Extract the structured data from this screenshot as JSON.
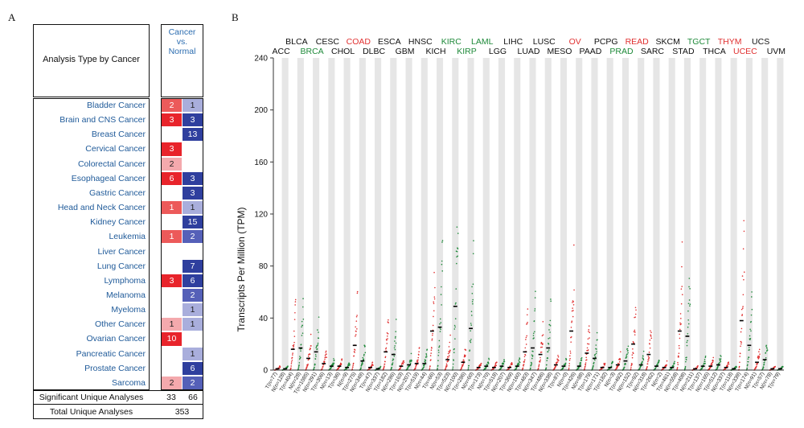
{
  "panels": {
    "a_label": "A",
    "b_label": "B"
  },
  "table": {
    "header_label": "Analysis Type by Cancer",
    "column_header_lines": [
      "Cancer",
      "vs.",
      "Normal"
    ],
    "colors": {
      "red_dark": "#e8242b",
      "red_mid": "#ec5a5a",
      "red_light": "#f4a9ad",
      "blue_dark": "#2f3f9e",
      "blue_mid": "#5560b8",
      "blue_light": "#a9aedc",
      "label_blue": "#1f5a99"
    },
    "rows": [
      {
        "name": "Bladder Cancer",
        "up": "2",
        "down": "1"
      },
      {
        "name": "Brain and CNS Cancer",
        "up": "3",
        "down": "3"
      },
      {
        "name": "Breast Cancer",
        "up": "",
        "down": "13"
      },
      {
        "name": "Cervical Cancer",
        "up": "3",
        "down": ""
      },
      {
        "name": "Colorectal Cancer",
        "up": "2",
        "down": ""
      },
      {
        "name": "Esophageal Cancer",
        "up": "6",
        "down": "3"
      },
      {
        "name": "Gastric Cancer",
        "up": "",
        "down": "3"
      },
      {
        "name": "Head and Neck Cancer",
        "up": "1",
        "down": "1"
      },
      {
        "name": "Kidney Cancer",
        "up": "",
        "down": "15"
      },
      {
        "name": "Leukemia",
        "up": "1",
        "down": "2"
      },
      {
        "name": "Liver Cancer",
        "up": "",
        "down": ""
      },
      {
        "name": "Lung Cancer",
        "up": "",
        "down": "7"
      },
      {
        "name": "Lymphoma",
        "up": "3",
        "down": "6"
      },
      {
        "name": "Melanoma",
        "up": "",
        "down": "2"
      },
      {
        "name": "Myeloma",
        "up": "",
        "down": "1"
      },
      {
        "name": "Other Cancer",
        "up": "1",
        "down": "1"
      },
      {
        "name": "Ovarian Cancer",
        "up": "10",
        "down": ""
      },
      {
        "name": "Pancreatic Cancer",
        "up": "",
        "down": "1"
      },
      {
        "name": "Prostate Cancer",
        "up": "",
        "down": "6"
      },
      {
        "name": "Sarcoma",
        "up": "2",
        "down": "2"
      }
    ],
    "footer": {
      "significant_label": "Significant Unique Analyses",
      "significant_up": "33",
      "significant_down": "66",
      "total_label": "Total Unique Analyses",
      "total_value": "353"
    }
  },
  "chart_data": {
    "type": "scatter",
    "ylabel": "Transcripts Per Million (TPM)",
    "ylim": [
      0,
      240
    ],
    "yticks": [
      "0",
      "40",
      "80",
      "120",
      "160",
      "200",
      "240"
    ],
    "grid": false,
    "colors": {
      "tumor": "#e03030",
      "normal": "#1f8a3a",
      "black": "#111111",
      "band": "#e6e6e6"
    },
    "cancers": [
      {
        "name": "ACC",
        "color": "black",
        "tumor_median": 1,
        "normal_median": 1
      },
      {
        "name": "BLCA",
        "color": "black",
        "tumor_median": 16,
        "normal_median": 17
      },
      {
        "name": "BRCA",
        "color": "green",
        "tumor_median": 9,
        "normal_median": 14
      },
      {
        "name": "CESC",
        "color": "black",
        "tumor_median": 5,
        "normal_median": 3
      },
      {
        "name": "CHOL",
        "color": "black",
        "tumor_median": 3,
        "normal_median": 2
      },
      {
        "name": "COAD",
        "color": "red",
        "tumor_median": 19,
        "normal_median": 7
      },
      {
        "name": "DLBC",
        "color": "black",
        "tumor_median": 2,
        "normal_median": 1
      },
      {
        "name": "ESCA",
        "color": "black",
        "tumor_median": 14,
        "normal_median": 12
      },
      {
        "name": "GBM",
        "color": "black",
        "tumor_median": 3,
        "normal_median": 4
      },
      {
        "name": "HNSC",
        "color": "black",
        "tumor_median": 5,
        "normal_median": 5
      },
      {
        "name": "KICH",
        "color": "black",
        "tumor_median": 30,
        "normal_median": 33
      },
      {
        "name": "KIRC",
        "color": "green",
        "tumor_median": 8,
        "normal_median": 49
      },
      {
        "name": "KIRP",
        "color": "green",
        "tumor_median": 6,
        "normal_median": 32
      },
      {
        "name": "LAML",
        "color": "green",
        "tumor_median": 2,
        "normal_median": 3
      },
      {
        "name": "LGG",
        "color": "black",
        "tumor_median": 2,
        "normal_median": 3
      },
      {
        "name": "LIHC",
        "color": "black",
        "tumor_median": 2,
        "normal_median": 3
      },
      {
        "name": "LUAD",
        "color": "black",
        "tumor_median": 14,
        "normal_median": 17
      },
      {
        "name": "LUSC",
        "color": "black",
        "tumor_median": 12,
        "normal_median": 17
      },
      {
        "name": "MESO",
        "color": "black",
        "tumor_median": 4,
        "normal_median": 3
      },
      {
        "name": "OV",
        "color": "red",
        "tumor_median": 30,
        "normal_median": 3
      },
      {
        "name": "PAAD",
        "color": "black",
        "tumor_median": 13,
        "normal_median": 9
      },
      {
        "name": "PCPG",
        "color": "black",
        "tumor_median": 2,
        "normal_median": 2
      },
      {
        "name": "PRAD",
        "color": "green",
        "tumor_median": 4,
        "normal_median": 7
      },
      {
        "name": "READ",
        "color": "red",
        "tumor_median": 20,
        "normal_median": 4
      },
      {
        "name": "SARC",
        "color": "black",
        "tumor_median": 12,
        "normal_median": 3
      },
      {
        "name": "SKCM",
        "color": "black",
        "tumor_median": 2,
        "normal_median": 2
      },
      {
        "name": "STAD",
        "color": "black",
        "tumor_median": 30,
        "normal_median": 26
      },
      {
        "name": "TGCT",
        "color": "green",
        "tumor_median": 1,
        "normal_median": 3
      },
      {
        "name": "THCA",
        "color": "black",
        "tumor_median": 3,
        "normal_median": 4
      },
      {
        "name": "THYM",
        "color": "red",
        "tumor_median": 2,
        "normal_median": 1
      },
      {
        "name": "UCEC",
        "color": "red",
        "tumor_median": 38,
        "normal_median": 19
      },
      {
        "name": "UCS",
        "color": "black",
        "tumor_median": 6,
        "normal_median": 8
      },
      {
        "name": "UVM",
        "color": "black",
        "tumor_median": 1,
        "normal_median": 1
      }
    ],
    "x_tick_labels": [
      "T(n=77)",
      "N(n=128)",
      "T(n=404)",
      "N(n=28)",
      "T(n=1085)",
      "N(n=291)",
      "T(n=306)",
      "N(n=13)",
      "T(n=36)",
      "N(n=9)",
      "T(n=275)",
      "N(n=349)",
      "T(n=47)",
      "N(n=337)",
      "T(n=182)",
      "N(n=286)",
      "T(n=163)",
      "N(n=207)",
      "T(n=519)",
      "N(n=44)",
      "T(n=66)",
      "N(n=53)",
      "T(n=523)",
      "N(n=100)",
      "T(n=286)",
      "N(n=60)",
      "T(n=173)",
      "N(n=70)",
      "T(n=518)",
      "N(n=207)",
      "T(n=369)",
      "N(n=160)",
      "T(n=483)",
      "N(n=347)",
      "T(n=486)",
      "N(n=338)",
      "T(n=87)",
      "N(n=0)",
      "T(n=426)",
      "N(n=88)",
      "T(n=179)",
      "N(n=171)",
      "T(n=182)",
      "N(n=3)",
      "T(n=492)",
      "N(n=152)",
      "T(n=92)",
      "N(n=318)",
      "T(n=262)",
      "N(n=2)",
      "T(n=461)",
      "N(n=558)",
      "T(n=408)",
      "N(n=211)",
      "T(n=137)",
      "N(n=165)",
      "T(n=512)",
      "N(n=337)",
      "T(n=118)",
      "N(n=339)",
      "T(n=174)",
      "N(n=91)",
      "T(n=57)",
      "N(n=78)",
      "T(n=79)"
    ]
  }
}
